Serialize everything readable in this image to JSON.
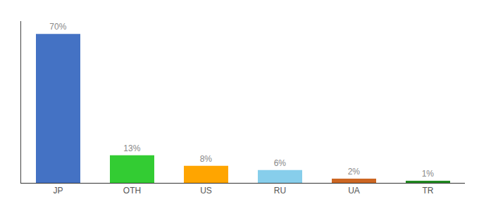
{
  "chart_data": {
    "type": "bar",
    "categories": [
      "JP",
      "OTH",
      "US",
      "RU",
      "UA",
      "TR"
    ],
    "values": [
      70,
      13,
      8,
      6,
      2,
      1
    ],
    "value_labels": [
      "70%",
      "13%",
      "8%",
      "6%",
      "2%",
      "1%"
    ],
    "colors": [
      "#4472C4",
      "#33CC33",
      "#FFA500",
      "#87CEEB",
      "#CC6622",
      "#228B22"
    ],
    "ylim": [
      0,
      76
    ],
    "grid": false,
    "data_labels": true,
    "tick_labels": "x"
  }
}
